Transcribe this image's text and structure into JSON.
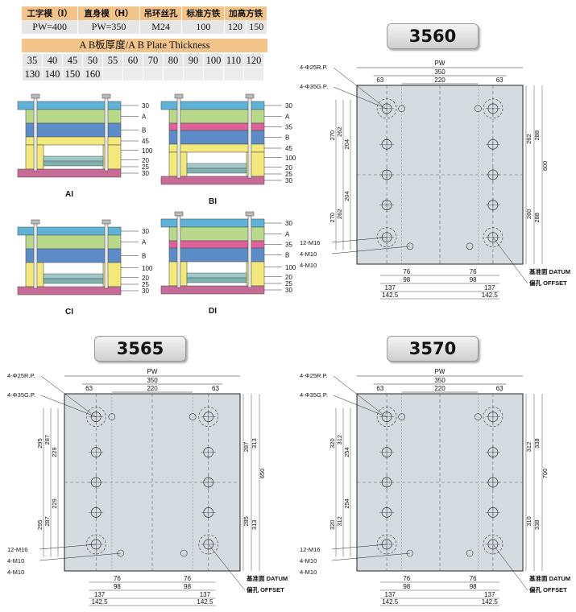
{
  "spec": {
    "headers": [
      "工字模（I）",
      "直身模（H）",
      "吊环丝孔",
      "标准方铁",
      "加高方铁"
    ],
    "values": [
      "PW=400",
      "PW=350",
      "M24",
      "100",
      "120",
      "150"
    ]
  },
  "thickness": {
    "title": "A B板厚度/A B Plate Thickness",
    "row1": [
      "35",
      "40",
      "45",
      "50",
      "55",
      "60",
      "70",
      "80",
      "90",
      "100",
      "110",
      "120"
    ],
    "row2": [
      "130",
      "140",
      "150",
      "160"
    ]
  },
  "stacks": {
    "AI": {
      "caption": "AI",
      "labels": [
        "30",
        "A",
        "B",
        "45",
        "100",
        "20",
        "25",
        "30"
      ]
    },
    "BI": {
      "caption": "BI",
      "labels": [
        "30",
        "A",
        "35",
        "B",
        "45",
        "100",
        "20",
        "25",
        "30"
      ]
    },
    "CI": {
      "caption": "CI",
      "labels": [
        "30",
        "A",
        "B",
        "100",
        "20",
        "25",
        "30"
      ]
    },
    "DI": {
      "caption": "DI",
      "labels": [
        "30",
        "A",
        "35",
        "B",
        "100",
        "20",
        "25",
        "30"
      ]
    }
  },
  "plates": {
    "p3560": {
      "model": "3560",
      "rp": "4-Φ25R.P.",
      "gp": "4-Φ35G.P.",
      "pw": "PW",
      "w350": "350",
      "w220": "220",
      "w63a": "63",
      "w63b": "63",
      "left": [
        "270",
        "262",
        "204",
        "204",
        "262",
        "270"
      ],
      "right": [
        "262",
        "288",
        "600",
        "260",
        "288"
      ],
      "m16": "12-M16",
      "m10a": "4-M10",
      "m10b": "4-M10",
      "b76a": "76",
      "b76b": "76",
      "b98a": "98",
      "b98b": "98",
      "b137a": "137",
      "b137b": "137",
      "b1425a": "142.5",
      "b1425b": "142.5",
      "datum": "基准面 DATUM",
      "offset": "偏孔 OFFSET"
    },
    "p3565": {
      "model": "3565",
      "rp": "4-Φ25R.P.",
      "gp": "4-Φ35G.P.",
      "pw": "PW",
      "w350": "350",
      "w220": "220",
      "w63a": "63",
      "w63b": "63",
      "left": [
        "295",
        "287",
        "229",
        "229",
        "287",
        "295"
      ],
      "right": [
        "287",
        "313",
        "650",
        "285",
        "313"
      ],
      "m16": "12-M16",
      "m10a": "4-M10",
      "m10b": "4-M10",
      "b76a": "76",
      "b76b": "76",
      "b98a": "98",
      "b98b": "98",
      "b137a": "137",
      "b137b": "137",
      "b1425a": "142.5",
      "b1425b": "142.5",
      "datum": "基准面 DATUM",
      "offset": "偏孔 OFFSET"
    },
    "p3570": {
      "model": "3570",
      "rp": "4-Φ25R.P.",
      "gp": "4-Φ35G.P.",
      "pw": "PW",
      "w350": "350",
      "w220": "220",
      "w63a": "63",
      "w63b": "63",
      "left": [
        "320",
        "312",
        "254",
        "254",
        "312",
        "320"
      ],
      "right": [
        "312",
        "338",
        "700",
        "310",
        "338"
      ],
      "m16": "12-M16",
      "m10a": "4-M10",
      "m10b": "4-M10",
      "b76a": "76",
      "b76b": "76",
      "b98a": "98",
      "b98b": "98",
      "b137a": "137",
      "b137b": "137",
      "b1425a": "142.5",
      "b1425b": "142.5",
      "datum": "基准面 DATUM",
      "offset": "偏孔 OFFSET"
    }
  },
  "colors": {
    "top_plate": "#5fb3d9",
    "a_plate": "#b9d98a",
    "b_plate": "#5b8cc7",
    "spacer": "#f3e97a",
    "mid_plate": "#e0609a",
    "bottom_plate": "#c76a96",
    "plate_face": "#d6dbe0"
  }
}
